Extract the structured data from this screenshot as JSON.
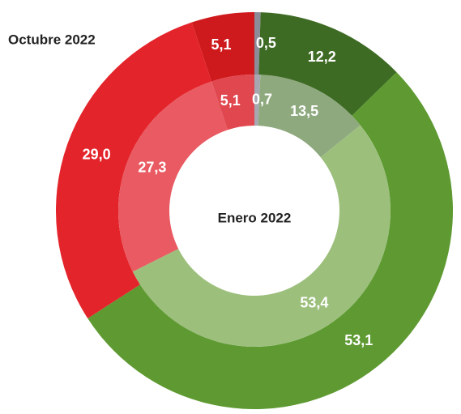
{
  "chart_data": {
    "type": "donut",
    "series": [
      {
        "name": "Octubre 2022",
        "ring": "outer",
        "colors": [
          "#8c8c99",
          "#3e6b24",
          "#5e9a31",
          "#e4242b",
          "#cf1a1d"
        ],
        "values": [
          0.5,
          12.2,
          53.1,
          29.0,
          5.1
        ],
        "value_labels": [
          "0,5",
          "12,2",
          "53,1",
          "29,0",
          "5,1"
        ]
      },
      {
        "name": "Enero 2022",
        "ring": "inner",
        "colors": [
          "#a7a7b1",
          "#8ea97e",
          "#9cbf7c",
          "#e95a62",
          "#e1474f"
        ],
        "values": [
          0.7,
          13.5,
          53.4,
          27.3,
          5.1
        ],
        "value_labels": [
          "0,7",
          "13,5",
          "53,4",
          "27,3",
          "5,1"
        ]
      }
    ]
  }
}
